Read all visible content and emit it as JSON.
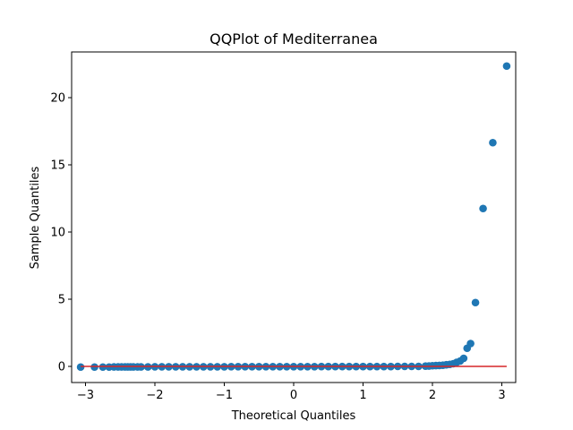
{
  "chart_data": {
    "type": "scatter",
    "title": "QQPlot of Mediterranea",
    "xlabel": "Theoretical Quantiles",
    "ylabel": "Sample Quantiles",
    "xlim": [
      -3.2,
      3.2
    ],
    "ylim": [
      -1.2,
      23.4
    ],
    "xticks": [
      -3,
      -2,
      -1,
      0,
      1,
      2,
      3
    ],
    "yticks": [
      0,
      5,
      10,
      15,
      20
    ],
    "grid": false,
    "marker_color": "#1f77b4",
    "line_color": "#d62728",
    "reference_line": {
      "x": [
        -3.07,
        3.07
      ],
      "y": [
        0,
        0
      ]
    },
    "series": [
      {
        "x": [
          -3.07,
          -2.87,
          -2.75,
          -2.66,
          -2.59,
          -2.53,
          -2.48,
          -2.43,
          -2.39,
          -2.35,
          -2.31,
          -2.25,
          -2.2,
          -2.1,
          -2.0,
          -1.9,
          -1.8,
          -1.7,
          -1.6,
          -1.5,
          -1.4,
          -1.3,
          -1.2,
          -1.1,
          -1.0,
          -0.9,
          -0.8,
          -0.7,
          -0.6,
          -0.5,
          -0.4,
          -0.3,
          -0.2,
          -0.1,
          0.0,
          0.1,
          0.2,
          0.3,
          0.4,
          0.5,
          0.6,
          0.7,
          0.8,
          0.9,
          1.0,
          1.1,
          1.2,
          1.3,
          1.4,
          1.5,
          1.6,
          1.7,
          1.8,
          1.9,
          1.95,
          2.0,
          2.05,
          2.1,
          2.15,
          2.2,
          2.25,
          2.3,
          2.35,
          2.4,
          2.45,
          2.5,
          2.55,
          2.62,
          2.73,
          2.87,
          3.07
        ],
        "y": [
          -0.05,
          -0.05,
          -0.05,
          -0.05,
          -0.04,
          -0.04,
          -0.04,
          -0.04,
          -0.04,
          -0.04,
          -0.04,
          -0.04,
          -0.04,
          -0.04,
          -0.03,
          -0.03,
          -0.03,
          -0.03,
          -0.03,
          -0.03,
          -0.03,
          -0.03,
          -0.03,
          -0.03,
          -0.03,
          -0.02,
          -0.02,
          -0.02,
          -0.02,
          -0.02,
          -0.02,
          -0.02,
          -0.02,
          -0.02,
          -0.02,
          -0.02,
          -0.02,
          -0.02,
          -0.01,
          -0.01,
          -0.01,
          -0.01,
          -0.01,
          -0.01,
          -0.01,
          -0.01,
          -0.01,
          -0.01,
          -0.01,
          0.0,
          0.0,
          0.0,
          0.0,
          0.02,
          0.03,
          0.05,
          0.06,
          0.07,
          0.09,
          0.12,
          0.15,
          0.2,
          0.3,
          0.4,
          0.6,
          1.35,
          1.7,
          4.75,
          11.75,
          16.65,
          22.35
        ]
      }
    ]
  }
}
